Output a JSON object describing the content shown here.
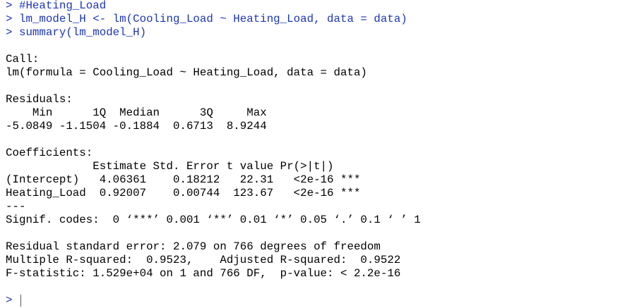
{
  "console": {
    "commands": [
      "> #Heating_Load",
      "> lm_model_H <- lm(Cooling_Load ~ Heating_Load, data = data)",
      "> summary(lm_model_H)"
    ],
    "call": {
      "heading": "Call:",
      "formula": "lm(formula = Cooling_Load ~ Heating_Load, data = data)"
    },
    "residuals": {
      "heading": "Residuals:",
      "header": "    Min      1Q  Median      3Q     Max ",
      "values": "-5.0849 -1.1504 -0.1884  0.6713  8.9244 "
    },
    "coefficients": {
      "heading": "Coefficients:",
      "header": "             Estimate Std. Error t value Pr(>|t|)    ",
      "rows": [
        "(Intercept)   4.06361    0.18212   22.31   <2e-16 ***",
        "Heating_Load  0.92007    0.00744  123.67   <2e-16 ***"
      ],
      "separator": "---",
      "signif": "Signif. codes:  0 ‘***’ 0.001 ‘**’ 0.01 ‘*’ 0.05 ‘.’ 0.1 ‘ ’ 1"
    },
    "fit": [
      "Residual standard error: 2.079 on 766 degrees of freedom",
      "Multiple R-squared:  0.9523,\tAdjusted R-squared:  0.9522 ",
      "F-statistic: 1.529e+04 on 1 and 766 DF,  p-value: < 2.2e-16"
    ],
    "prompt": ">"
  }
}
